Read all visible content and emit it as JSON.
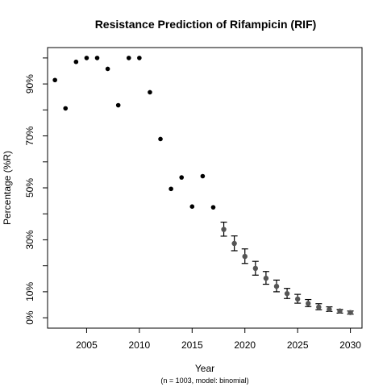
{
  "chart_data": {
    "type": "scatter",
    "title": "Resistance Prediction of Rifampicin (RIF)",
    "xlabel": "Year",
    "ylabel": "Percentage (%R)",
    "caption": "(n = 1003, model: binomial)",
    "xlim": [
      2001.3,
      2031.1
    ],
    "ylim": [
      -4,
      104
    ],
    "x_ticks": [
      {
        "value": 2005,
        "label": "2005"
      },
      {
        "value": 2010,
        "label": "2010"
      },
      {
        "value": 2015,
        "label": "2015"
      },
      {
        "value": 2020,
        "label": "2020"
      },
      {
        "value": 2025,
        "label": "2025"
      },
      {
        "value": 2030,
        "label": "2030"
      }
    ],
    "y_ticks": [
      {
        "value": 0,
        "label": "0%"
      },
      {
        "value": 10,
        "label": "10%"
      },
      {
        "value": 20,
        "label": ""
      },
      {
        "value": 30,
        "label": "30%"
      },
      {
        "value": 40,
        "label": ""
      },
      {
        "value": 50,
        "label": "50%"
      },
      {
        "value": 60,
        "label": ""
      },
      {
        "value": 70,
        "label": "70%"
      },
      {
        "value": 80,
        "label": ""
      },
      {
        "value": 90,
        "label": "90%"
      },
      {
        "value": 100,
        "label": ""
      }
    ],
    "grid": false,
    "series": [
      {
        "color": "#000000",
        "points": [
          {
            "x": 2002,
            "y": 91.5
          },
          {
            "x": 2003,
            "y": 80.6
          },
          {
            "x": 2004,
            "y": 98.5
          },
          {
            "x": 2005,
            "y": 100
          },
          {
            "x": 2006,
            "y": 100
          },
          {
            "x": 2007,
            "y": 95.8
          },
          {
            "x": 2008,
            "y": 81.8
          },
          {
            "x": 2009,
            "y": 100
          },
          {
            "x": 2010,
            "y": 100
          },
          {
            "x": 2011,
            "y": 86.8
          },
          {
            "x": 2012,
            "y": 68.8
          },
          {
            "x": 2013,
            "y": 49.6
          },
          {
            "x": 2014,
            "y": 54.0
          },
          {
            "x": 2015,
            "y": 42.8
          },
          {
            "x": 2016,
            "y": 54.5
          },
          {
            "x": 2017,
            "y": 42.5
          }
        ]
      },
      {
        "color": "#555555",
        "points": [
          {
            "x": 2018,
            "y": 34.0,
            "lower": 31.4,
            "upper": 36.8
          },
          {
            "x": 2019,
            "y": 28.6,
            "lower": 25.8,
            "upper": 31.5
          },
          {
            "x": 2020,
            "y": 23.6,
            "lower": 20.9,
            "upper": 26.5
          },
          {
            "x": 2021,
            "y": 19.0,
            "lower": 16.4,
            "upper": 21.7
          },
          {
            "x": 2022,
            "y": 15.2,
            "lower": 12.9,
            "upper": 17.8
          },
          {
            "x": 2023,
            "y": 12.1,
            "lower": 10.0,
            "upper": 14.5
          },
          {
            "x": 2024,
            "y": 9.3,
            "lower": 7.4,
            "upper": 11.3
          },
          {
            "x": 2025,
            "y": 7.2,
            "lower": 5.6,
            "upper": 9.0
          },
          {
            "x": 2026,
            "y": 5.5,
            "lower": 4.3,
            "upper": 7.0
          },
          {
            "x": 2027,
            "y": 4.1,
            "lower": 3.1,
            "upper": 5.4
          },
          {
            "x": 2028,
            "y": 3.2,
            "lower": 2.4,
            "upper": 4.2
          },
          {
            "x": 2029,
            "y": 2.6,
            "lower": 1.8,
            "upper": 3.2
          },
          {
            "x": 2030,
            "y": 2.0,
            "lower": 1.4,
            "upper": 2.6
          }
        ]
      }
    ]
  }
}
